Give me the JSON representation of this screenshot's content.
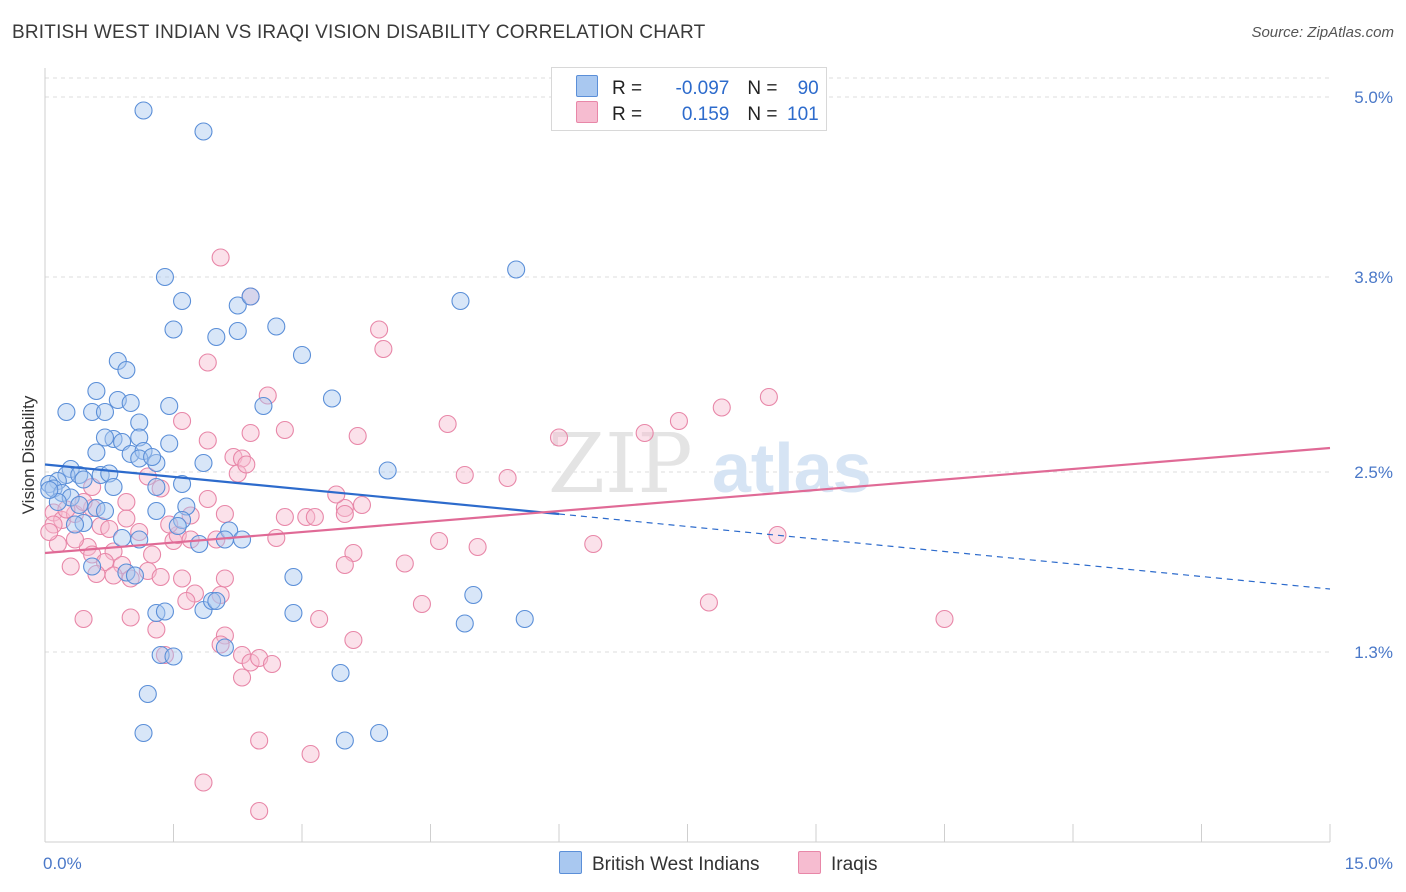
{
  "title": "BRITISH WEST INDIAN VS IRAQI VISION DISABILITY CORRELATION CHART",
  "source": "Source: ZipAtlas.com",
  "watermark": {
    "zip": "ZIP",
    "atlas": "atlas"
  },
  "legend": {
    "rows": [
      {
        "r_label": "R = ",
        "r_value": "-0.097",
        "n_label": "N = ",
        "n_value": "90"
      },
      {
        "r_label": "R = ",
        "r_value": "0.159",
        "n_label": "N = ",
        "n_value": "101"
      }
    ]
  },
  "colors": {
    "blue_fill": "#a9c8f0",
    "blue_stroke": "#5b8fd8",
    "blue_line": "#2d6bcc",
    "pink_fill": "#f6bcd0",
    "pink_stroke": "#e887a8",
    "pink_line": "#e06a96",
    "tick": "#4a78c8",
    "grid": "#dddddd"
  },
  "chart_data": {
    "type": "scatter",
    "title": "BRITISH WEST INDIAN VS IRAQI VISION DISABILITY CORRELATION CHART",
    "xlabel": "",
    "ylabel": "Vision Disability",
    "xlim": [
      0,
      15
    ],
    "ylim": [
      0,
      5.2
    ],
    "x_tick_labels": [
      "0.0%",
      "15.0%"
    ],
    "y_ticks": [
      1.3,
      2.5,
      3.8,
      5.0
    ],
    "y_tick_labels": [
      "1.3%",
      "2.5%",
      "3.8%",
      "5.0%"
    ],
    "legend_position": "top-center",
    "series": [
      {
        "name": "British West Indians",
        "R": -0.097,
        "N": 90,
        "trend": {
          "x0": 0,
          "y0": 2.55,
          "x_solid_end": 6.0,
          "y_solid_end": 2.22,
          "x1": 15,
          "y1": 1.72
        },
        "points": [
          [
            1.15,
            4.91
          ],
          [
            1.85,
            4.77
          ],
          [
            1.4,
            3.8
          ],
          [
            1.6,
            3.64
          ],
          [
            2.25,
            3.61
          ],
          [
            2.4,
            3.67
          ],
          [
            1.5,
            3.45
          ],
          [
            2.0,
            3.4
          ],
          [
            2.25,
            3.44
          ],
          [
            2.7,
            3.47
          ],
          [
            3.0,
            3.28
          ],
          [
            0.85,
            3.24
          ],
          [
            0.95,
            3.18
          ],
          [
            0.6,
            3.04
          ],
          [
            0.85,
            2.98
          ],
          [
            1.0,
            2.96
          ],
          [
            0.55,
            2.9
          ],
          [
            0.7,
            2.9
          ],
          [
            0.25,
            2.9
          ],
          [
            1.45,
            2.94
          ],
          [
            2.55,
            2.94
          ],
          [
            3.35,
            2.99
          ],
          [
            1.1,
            2.83
          ],
          [
            0.8,
            2.72
          ],
          [
            0.9,
            2.7
          ],
          [
            0.7,
            2.73
          ],
          [
            1.1,
            2.73
          ],
          [
            1.45,
            2.69
          ],
          [
            0.6,
            2.63
          ],
          [
            1.0,
            2.62
          ],
          [
            1.15,
            2.64
          ],
          [
            1.3,
            2.56
          ],
          [
            1.1,
            2.59
          ],
          [
            1.85,
            2.56
          ],
          [
            0.3,
            2.52
          ],
          [
            0.25,
            2.48
          ],
          [
            0.4,
            2.48
          ],
          [
            0.65,
            2.48
          ],
          [
            0.75,
            2.49
          ],
          [
            0.15,
            2.44
          ],
          [
            0.05,
            2.42
          ],
          [
            0.1,
            2.39
          ],
          [
            0.2,
            2.36
          ],
          [
            0.3,
            2.33
          ],
          [
            1.3,
            2.4
          ],
          [
            1.6,
            2.42
          ],
          [
            0.4,
            2.28
          ],
          [
            0.6,
            2.26
          ],
          [
            1.3,
            2.24
          ],
          [
            1.65,
            2.27
          ],
          [
            1.6,
            2.18
          ],
          [
            2.15,
            2.11
          ],
          [
            0.45,
            2.16
          ],
          [
            0.9,
            2.06
          ],
          [
            1.1,
            2.05
          ],
          [
            1.55,
            2.14
          ],
          [
            2.1,
            2.05
          ],
          [
            2.3,
            2.05
          ],
          [
            1.8,
            2.02
          ],
          [
            0.55,
            1.87
          ],
          [
            0.95,
            1.83
          ],
          [
            1.05,
            1.81
          ],
          [
            2.9,
            1.8
          ],
          [
            5.0,
            1.68
          ],
          [
            1.3,
            1.56
          ],
          [
            1.4,
            1.57
          ],
          [
            1.85,
            1.58
          ],
          [
            1.95,
            1.64
          ],
          [
            2.0,
            1.64
          ],
          [
            2.9,
            1.56
          ],
          [
            4.9,
            1.49
          ],
          [
            5.6,
            1.52
          ],
          [
            1.35,
            1.28
          ],
          [
            1.5,
            1.27
          ],
          [
            2.1,
            1.33
          ],
          [
            3.45,
            1.16
          ],
          [
            1.2,
            1.02
          ],
          [
            1.15,
            0.76
          ],
          [
            3.5,
            0.71
          ],
          [
            3.9,
            0.76
          ],
          [
            5.5,
            3.85
          ],
          [
            4.85,
            3.64
          ],
          [
            4.0,
            2.51
          ],
          [
            0.15,
            2.3
          ],
          [
            0.7,
            2.24
          ],
          [
            0.05,
            2.38
          ],
          [
            0.35,
            2.15
          ],
          [
            0.8,
            2.4
          ],
          [
            1.25,
            2.6
          ],
          [
            0.45,
            2.45
          ]
        ]
      },
      {
        "name": "Iraqis",
        "R": 0.159,
        "N": 101,
        "trend": {
          "x0": 0,
          "y0": 1.96,
          "x1": 15,
          "y1": 2.66
        },
        "points": [
          [
            2.05,
            3.93
          ],
          [
            2.4,
            3.67
          ],
          [
            3.9,
            3.45
          ],
          [
            3.95,
            3.32
          ],
          [
            1.9,
            3.23
          ],
          [
            2.6,
            3.01
          ],
          [
            8.45,
            3.0
          ],
          [
            7.9,
            2.93
          ],
          [
            1.6,
            2.84
          ],
          [
            2.4,
            2.76
          ],
          [
            2.8,
            2.78
          ],
          [
            3.65,
            2.74
          ],
          [
            4.7,
            2.82
          ],
          [
            6.0,
            2.73
          ],
          [
            7.0,
            2.76
          ],
          [
            7.4,
            2.84
          ],
          [
            1.9,
            2.71
          ],
          [
            2.2,
            2.6
          ],
          [
            2.3,
            2.59
          ],
          [
            2.25,
            2.49
          ],
          [
            4.9,
            2.48
          ],
          [
            5.4,
            2.46
          ],
          [
            1.2,
            2.47
          ],
          [
            1.35,
            2.39
          ],
          [
            0.95,
            2.3
          ],
          [
            1.7,
            2.21
          ],
          [
            3.5,
            2.26
          ],
          [
            3.7,
            2.28
          ],
          [
            3.5,
            2.22
          ],
          [
            3.05,
            2.2
          ],
          [
            0.1,
            2.23
          ],
          [
            0.2,
            2.18
          ],
          [
            0.35,
            2.22
          ],
          [
            0.55,
            2.26
          ],
          [
            0.1,
            2.15
          ],
          [
            0.65,
            2.14
          ],
          [
            0.95,
            2.19
          ],
          [
            1.1,
            2.1
          ],
          [
            1.5,
            2.04
          ],
          [
            1.55,
            2.08
          ],
          [
            1.7,
            2.05
          ],
          [
            2.0,
            2.05
          ],
          [
            2.7,
            2.06
          ],
          [
            6.4,
            2.02
          ],
          [
            8.55,
            2.08
          ],
          [
            4.6,
            2.04
          ],
          [
            5.05,
            2.0
          ],
          [
            0.15,
            2.02
          ],
          [
            0.5,
            2.0
          ],
          [
            0.55,
            1.95
          ],
          [
            0.8,
            1.97
          ],
          [
            1.25,
            1.95
          ],
          [
            0.7,
            1.9
          ],
          [
            0.9,
            1.88
          ],
          [
            3.6,
            1.96
          ],
          [
            4.2,
            1.89
          ],
          [
            0.3,
            1.87
          ],
          [
            0.6,
            1.82
          ],
          [
            0.8,
            1.81
          ],
          [
            1.0,
            1.79
          ],
          [
            1.2,
            1.84
          ],
          [
            1.35,
            1.8
          ],
          [
            1.6,
            1.79
          ],
          [
            2.1,
            1.79
          ],
          [
            3.5,
            1.88
          ],
          [
            1.75,
            1.69
          ],
          [
            2.05,
            1.68
          ],
          [
            1.65,
            1.64
          ],
          [
            4.4,
            1.62
          ],
          [
            7.75,
            1.63
          ],
          [
            10.5,
            1.52
          ],
          [
            0.45,
            1.52
          ],
          [
            1.0,
            1.53
          ],
          [
            1.3,
            1.45
          ],
          [
            3.2,
            1.52
          ],
          [
            3.6,
            1.38
          ],
          [
            2.1,
            1.41
          ],
          [
            2.05,
            1.35
          ],
          [
            2.3,
            1.28
          ],
          [
            2.4,
            1.23
          ],
          [
            2.5,
            1.26
          ],
          [
            2.65,
            1.22
          ],
          [
            1.4,
            1.28
          ],
          [
            2.3,
            1.13
          ],
          [
            2.5,
            0.71
          ],
          [
            3.1,
            0.62
          ],
          [
            1.85,
            0.43
          ],
          [
            2.5,
            0.24
          ],
          [
            0.55,
            2.4
          ],
          [
            0.25,
            2.25
          ],
          [
            0.05,
            2.1
          ],
          [
            1.9,
            2.32
          ],
          [
            2.1,
            2.22
          ],
          [
            3.15,
            2.2
          ],
          [
            0.45,
            2.3
          ],
          [
            0.75,
            2.12
          ],
          [
            1.45,
            2.15
          ],
          [
            2.35,
            2.55
          ],
          [
            2.8,
            2.2
          ],
          [
            3.4,
            2.35
          ],
          [
            0.35,
            2.05
          ]
        ]
      }
    ]
  },
  "bottom_legend": [
    {
      "label": "British West Indians"
    },
    {
      "label": "Iraqis"
    }
  ]
}
